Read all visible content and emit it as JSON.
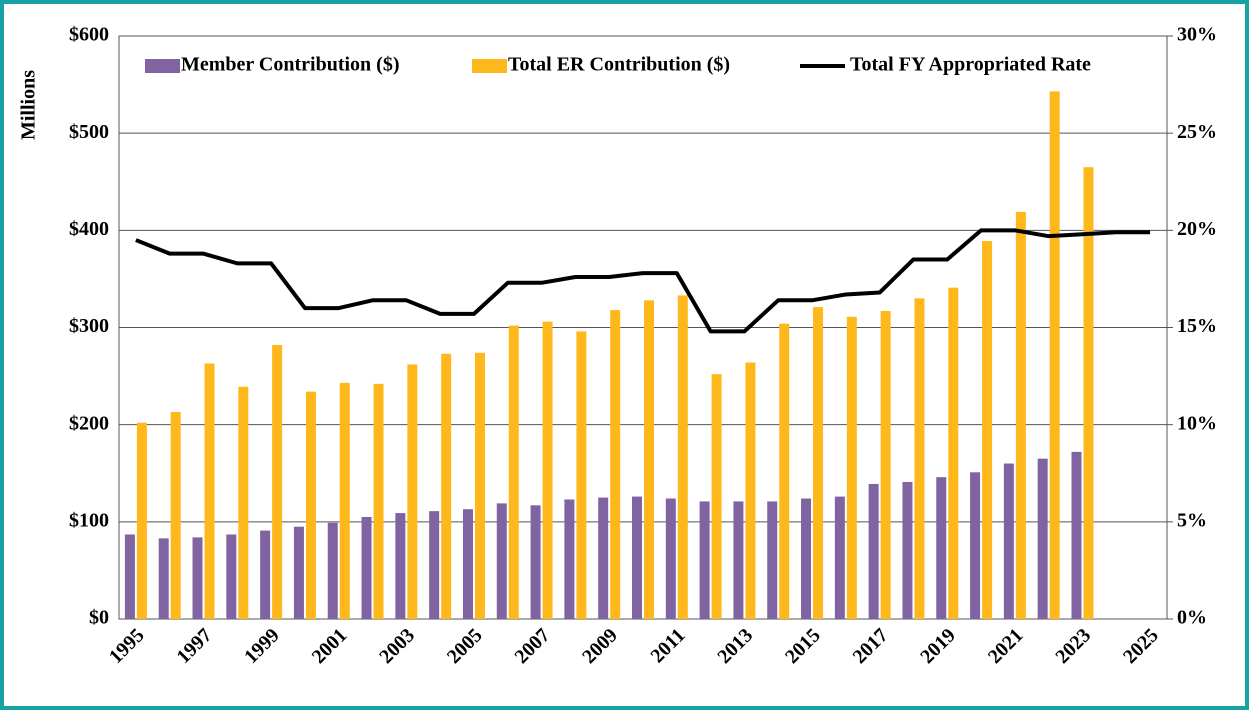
{
  "chart_data": {
    "type": "bar",
    "y_label": "Millions",
    "categories": [
      "1995",
      null,
      "1997",
      null,
      "1999",
      null,
      "2001",
      null,
      "2003",
      null,
      "2005",
      null,
      "2007",
      null,
      "2009",
      null,
      "2011",
      null,
      "2013",
      null,
      "2015",
      null,
      "2017",
      null,
      "2019",
      null,
      "2021",
      null,
      "2023",
      null,
      "2025"
    ],
    "series": [
      {
        "name": "Member Contribution ($)",
        "color": "#8064a2",
        "values": [
          87,
          83,
          84,
          87,
          91,
          95,
          99,
          105,
          109,
          111,
          113,
          119,
          117,
          123,
          125,
          126,
          124,
          121,
          121,
          121,
          124,
          126,
          139,
          141,
          146,
          151,
          160,
          165,
          172,
          null,
          null
        ]
      },
      {
        "name": "Total ER Contribution ($)",
        "color": "#ffb81c",
        "values": [
          202,
          213,
          263,
          239,
          282,
          234,
          243,
          242,
          262,
          273,
          274,
          302,
          306,
          296,
          318,
          328,
          333,
          252,
          264,
          304,
          321,
          311,
          317,
          330,
          341,
          389,
          419,
          543,
          465,
          null,
          null
        ]
      },
      {
        "name": "Total FY Appropriated Rate",
        "color": "#000000",
        "type": "line",
        "axis": "y2",
        "values": [
          19.5,
          18.8,
          18.8,
          18.3,
          18.3,
          16.0,
          16.0,
          16.4,
          16.4,
          15.7,
          15.7,
          17.3,
          17.3,
          17.6,
          17.6,
          17.8,
          17.8,
          14.8,
          14.8,
          16.4,
          16.4,
          16.7,
          16.8,
          18.5,
          18.5,
          20.0,
          20.0,
          19.7,
          19.8,
          19.9,
          19.9
        ]
      }
    ],
    "ylim": [
      0,
      600
    ],
    "yticks": [
      {
        "value": 0,
        "label": "$0"
      },
      {
        "value": 100,
        "label": "$100"
      },
      {
        "value": 200,
        "label": "$200"
      },
      {
        "value": 300,
        "label": "$300"
      },
      {
        "value": 400,
        "label": "$400"
      },
      {
        "value": 500,
        "label": "$500"
      },
      {
        "value": 600,
        "label": "$600"
      }
    ],
    "y2lim": [
      0,
      30
    ],
    "y2ticks": [
      {
        "value": 0,
        "label": "0%"
      },
      {
        "value": 5,
        "label": "5%"
      },
      {
        "value": 10,
        "label": "10%"
      },
      {
        "value": 15,
        "label": "15%"
      },
      {
        "value": 20,
        "label": "20%"
      },
      {
        "value": 25,
        "label": "25%"
      },
      {
        "value": 30,
        "label": "30%"
      }
    ],
    "grid": true,
    "legend": "top"
  }
}
